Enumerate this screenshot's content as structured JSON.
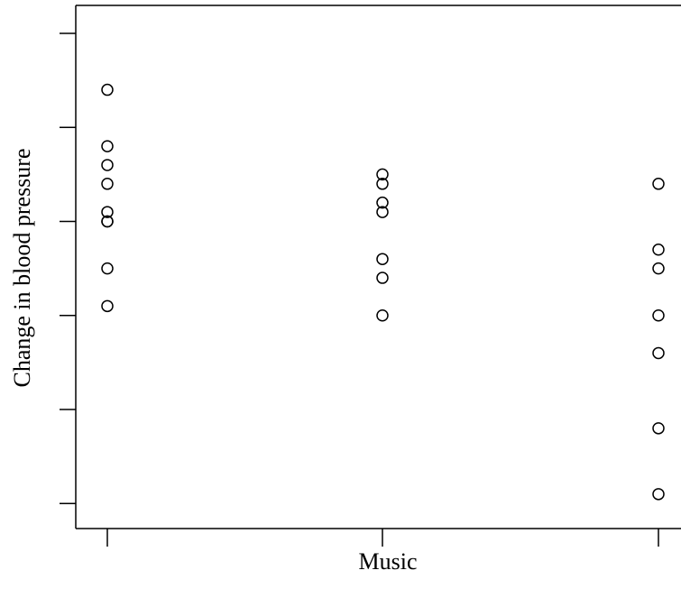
{
  "chart_data": {
    "type": "scatter",
    "title": "",
    "xlabel": "Music",
    "ylabel": "Change in blood pressure",
    "categories": [
      "",
      "",
      ""
    ],
    "ylim": [
      -22,
      6
    ],
    "y_ticks": [
      -20,
      -15,
      -10,
      -5,
      0,
      5
    ],
    "grid": false,
    "legend": "none",
    "series": [
      {
        "values": [
          [
            1,
            2.0
          ],
          [
            1,
            -1.0
          ],
          [
            1,
            -2.0
          ],
          [
            1,
            -3.0
          ],
          [
            1,
            -5.0
          ],
          [
            1,
            -4.5
          ],
          [
            1,
            -5.0
          ],
          [
            1,
            -7.5
          ],
          [
            1,
            -9.5
          ]
        ]
      },
      {
        "values": [
          [
            2,
            -2.5
          ],
          [
            2,
            -3.0
          ],
          [
            2,
            -4.0
          ],
          [
            2,
            -4.5
          ],
          [
            2,
            -7.0
          ],
          [
            2,
            -8.0
          ],
          [
            2,
            -10.0
          ]
        ]
      },
      {
        "values": [
          [
            3,
            -3.0
          ],
          [
            3,
            -6.5
          ],
          [
            3,
            -7.5
          ],
          [
            3,
            -10.0
          ],
          [
            3,
            -12.0
          ],
          [
            3,
            -16.0
          ],
          [
            3,
            -19.5
          ]
        ]
      }
    ],
    "marker": "open-circle",
    "color": "#000000"
  }
}
